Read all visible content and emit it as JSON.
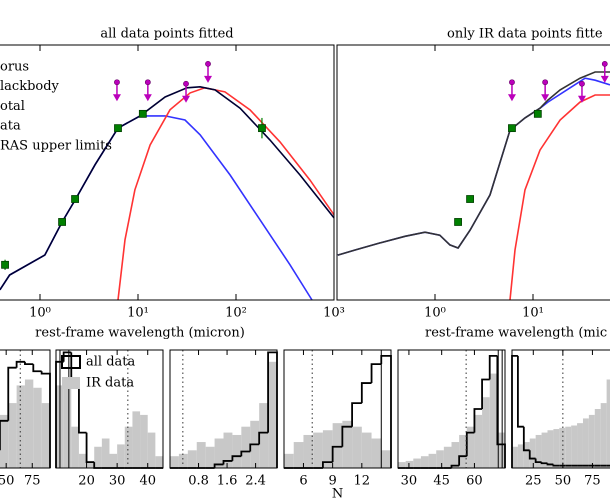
{
  "chart_data": [
    {
      "type": "line",
      "title": "all data points fitted",
      "xlabel": "rest-frame wavelength (micron)",
      "xscale": "log",
      "xlim": [
        0.1,
        1000
      ],
      "ylim": [
        0,
        5
      ],
      "xticks": [
        {
          "value": 1,
          "label": "10⁰"
        },
        {
          "value": 10,
          "label": "10¹"
        },
        {
          "value": 100,
          "label": "10²"
        },
        {
          "value": 1000,
          "label": "10³"
        }
      ],
      "series": [
        {
          "name": "orus",
          "color": "#3333ff",
          "style": "line",
          "x": [
            0.39,
            0.49,
            1.12,
            1.68,
            2.28,
            3.64,
            6.25,
            10.5,
            18.9,
            30.2,
            43,
            87,
            176,
            356,
            597
          ],
          "values": [
            0.2,
            0.49,
            0.88,
            1.53,
            1.96,
            2.65,
            3.37,
            3.61,
            3.61,
            3.53,
            3.24,
            2.45,
            1.57,
            0.69,
            0
          ]
        },
        {
          "name": "lackbody",
          "color": "#ff3333",
          "style": "line",
          "x": [
            6.25,
            7.37,
            9.3,
            13.3,
            21.2,
            34,
            48,
            77,
            139,
            281,
            569,
            1000
          ],
          "values": [
            0,
            1.18,
            2.16,
            3.04,
            3.73,
            4.06,
            4.16,
            4.08,
            3.73,
            3.1,
            2.35,
            1.67
          ]
        },
        {
          "name": "otal",
          "color": "#000033",
          "style": "line",
          "x": [
            0.39,
            0.49,
            1.12,
            1.68,
            2.28,
            3.64,
            6.25,
            10.5,
            18.9,
            31.6,
            43,
            61,
            110,
            222,
            450,
            1000
          ],
          "values": [
            0.2,
            0.49,
            0.88,
            1.53,
            1.96,
            2.65,
            3.37,
            3.61,
            3.98,
            4.16,
            4.18,
            4.12,
            3.76,
            3.14,
            2.45,
            1.61
          ]
        },
        {
          "name": "ata",
          "color": "#008000",
          "style": "points",
          "x": [
            0.44,
            1.68,
            2.28,
            6.25,
            11.2,
            184
          ],
          "values": [
            0.69,
            1.53,
            1.98,
            3.37,
            3.65,
            3.37
          ],
          "errors": [
            0.1,
            0.05,
            0.05,
            0.05,
            0.05,
            0.2
          ]
        },
        {
          "name": "RAS upper limits",
          "color": "#bb00bb",
          "style": "upper_limits",
          "x": [
            6.1,
            12.6,
            30.9,
            51.8
          ],
          "values": [
            4.27,
            4.27,
            4.24,
            4.63
          ]
        }
      ]
    },
    {
      "type": "line",
      "title": "only IR data points fitte",
      "xlabel": "rest-frame wavelength (mic",
      "xscale": "log",
      "xlim": [
        0.1,
        1000
      ],
      "ylim": [
        0,
        5
      ],
      "xticks": [
        {
          "value": 1,
          "label": "10⁰"
        },
        {
          "value": 10,
          "label": "10¹"
        }
      ],
      "series": [
        {
          "color": "#3333ff",
          "style": "line",
          "x": [
            0.102,
            0.153,
            0.275,
            0.494,
            0.79,
            1.12,
            1.42,
            1.72,
            2.28,
            3.64,
            5.82,
            8.28,
            11.8,
            14.2,
            23.9,
            34,
            43,
            61
          ],
          "values": [
            0.88,
            0.98,
            1.12,
            1.25,
            1.33,
            1.27,
            1.08,
            1.02,
            1.37,
            2.06,
            3.33,
            3.57,
            3.76,
            3.88,
            4.16,
            4.35,
            4.31,
            4.22
          ]
        },
        {
          "color": "#ff3333",
          "style": "line",
          "x": [
            5.82,
            6.55,
            8.28,
            11.8,
            18.9,
            30.2,
            43,
            61
          ],
          "values": [
            0,
            0.98,
            2.16,
            2.94,
            3.53,
            3.88,
            4.02,
            4.02
          ]
        },
        {
          "color": "#333333",
          "style": "line",
          "x": [
            0.102,
            0.153,
            0.275,
            0.494,
            0.79,
            1.12,
            1.42,
            1.72,
            2.28,
            3.64,
            5.82,
            8.28,
            11.8,
            14.2,
            18.9,
            30.2,
            43,
            61
          ],
          "values": [
            0.88,
            0.98,
            1.12,
            1.25,
            1.33,
            1.27,
            1.08,
            1.02,
            1.37,
            2.06,
            3.33,
            3.57,
            3.76,
            3.92,
            4.12,
            4.35,
            4.47,
            4.47
          ]
        },
        {
          "color": "#008000",
          "style": "points",
          "x": [
            1.72,
            2.28,
            6.1,
            11.2
          ],
          "values": [
            1.53,
            1.98,
            3.37,
            3.65
          ],
          "errors": [
            0.05,
            0.05,
            0.05,
            0.05
          ]
        },
        {
          "color": "#bb00bb",
          "style": "upper_limits",
          "x": [
            6.1,
            13.3,
            31.6,
            54
          ],
          "values": [
            4.27,
            4.27,
            4.24,
            4.63
          ]
        }
      ]
    },
    {
      "type": "histogram",
      "xlim": [
        0,
        92
      ],
      "ylim": [
        0,
        1
      ],
      "xticks": [
        50,
        75
      ],
      "dotted": 63.5,
      "bins": [
        4,
        12,
        20,
        28,
        36,
        44,
        52,
        60,
        68,
        76,
        84,
        92
      ],
      "series": [
        {
          "color": "#c8c8c8",
          "values": [
            0.05,
            0.1,
            0.15,
            0.2,
            0.3,
            0.45,
            0.55,
            0.7,
            0.75,
            0.68,
            0.55
          ]
        },
        {
          "color": "#000000",
          "values": [
            0,
            0,
            0.02,
            0.05,
            0.15,
            0.4,
            0.85,
            0.9,
            0.88,
            0.82,
            0.8
          ]
        }
      ]
    },
    {
      "type": "histogram",
      "xlim": [
        10,
        45
      ],
      "ylim": [
        0,
        1
      ],
      "xticks": [
        20,
        30,
        40
      ],
      "dotted": 33.5,
      "solid": [
        11.3,
        14.2
      ],
      "bins": [
        10,
        12.5,
        15,
        17.5,
        20,
        22.5,
        25,
        27.5,
        30,
        32.5,
        35,
        37.5,
        40,
        42.5,
        45
      ],
      "series": [
        {
          "name": "IR data",
          "color": "#c8c8c8",
          "values": [
            0.7,
            0.72,
            0.35,
            0.12,
            0.06,
            0.18,
            0.25,
            0.12,
            0.2,
            0.35,
            0.48,
            0.45,
            0.3,
            0.1
          ]
        },
        {
          "name": "all data",
          "color": "#000000",
          "values": [
            0.9,
            0.98,
            0.7,
            0.3,
            0.05,
            0,
            0,
            0,
            0,
            0,
            0,
            0,
            0,
            0
          ]
        }
      ]
    },
    {
      "type": "histogram",
      "xlim": [
        0,
        3
      ],
      "ylim": [
        0,
        1
      ],
      "xticks": [
        0.8,
        1.6,
        2.4
      ],
      "dotted": 0.36,
      "bins": [
        0,
        0.25,
        0.5,
        0.75,
        1,
        1.25,
        1.5,
        1.75,
        2,
        2.25,
        2.5,
        2.75,
        3
      ],
      "series": [
        {
          "color": "#c8c8c8",
          "values": [
            0.1,
            0.12,
            0.15,
            0.22,
            0.18,
            0.25,
            0.3,
            0.28,
            0.35,
            0.4,
            0.55,
            0.9
          ]
        },
        {
          "color": "#000000",
          "values": [
            0,
            0,
            0,
            0,
            0,
            0.03,
            0.06,
            0.1,
            0.14,
            0.2,
            0.3,
            0.98
          ]
        }
      ]
    },
    {
      "type": "histogram",
      "xlabel": "N",
      "xlim": [
        4,
        15
      ],
      "ylim": [
        0,
        1
      ],
      "xticks": [
        6,
        9,
        12
      ],
      "dotted": 6.9,
      "solid": [
        14
      ],
      "bins": [
        4,
        5,
        6,
        7,
        8,
        9,
        10,
        11,
        12,
        13,
        14,
        15
      ],
      "series": [
        {
          "color": "#c8c8c8",
          "values": [
            0.12,
            0.22,
            0.28,
            0.3,
            0.32,
            0.38,
            0.4,
            0.35,
            0.3,
            0.25,
            0.15
          ]
        },
        {
          "color": "#000000",
          "values": [
            0,
            0,
            0,
            0,
            0.05,
            0.18,
            0.35,
            0.55,
            0.72,
            0.88,
            0.95
          ]
        }
      ]
    },
    {
      "type": "histogram",
      "xlim": [
        25,
        74
      ],
      "ylim": [
        0,
        1
      ],
      "xticks": [
        30,
        45,
        60
      ],
      "dotted": 56.2,
      "solid": [
        70.9,
        72.7
      ],
      "bins": [
        25,
        28.5,
        32,
        35.5,
        39,
        42.5,
        46,
        49.5,
        53,
        56.5,
        60,
        63.5,
        67,
        70.5,
        74
      ],
      "series": [
        {
          "color": "#c8c8c8",
          "values": [
            0.05,
            0.06,
            0.08,
            0.1,
            0.12,
            0.15,
            0.18,
            0.22,
            0.28,
            0.35,
            0.45,
            0.6,
            0.8,
            0.3
          ]
        },
        {
          "color": "#000000",
          "values": [
            0,
            0,
            0,
            0,
            0,
            0,
            0,
            0.02,
            0.1,
            0.3,
            0.5,
            0.75,
            0.95,
            0.2
          ]
        }
      ]
    },
    {
      "type": "histogram",
      "xlim": [
        7,
        100
      ],
      "ylim": [
        0,
        1
      ],
      "xticks": [
        25,
        50,
        75
      ],
      "dotted": 50,
      "bins": [
        7,
        12,
        17,
        22,
        27,
        32,
        37,
        42,
        47,
        52,
        57,
        62,
        67,
        72,
        77,
        82,
        87,
        92,
        97
      ],
      "series": [
        {
          "color": "#c8c8c8",
          "values": [
            0.18,
            0.2,
            0.22,
            0.25,
            0.28,
            0.3,
            0.32,
            0.33,
            0.34,
            0.35,
            0.36,
            0.38,
            0.42,
            0.45,
            0.5,
            0.55,
            0.75,
            0.9
          ]
        },
        {
          "color": "#000000",
          "values": [
            0.95,
            0.35,
            0.15,
            0.08,
            0.05,
            0.04,
            0.03,
            0.02,
            0.02,
            0.02,
            0.02,
            0.02,
            0.02,
            0.02,
            0.02,
            0.02,
            0.02,
            0.02
          ]
        }
      ]
    }
  ]
}
